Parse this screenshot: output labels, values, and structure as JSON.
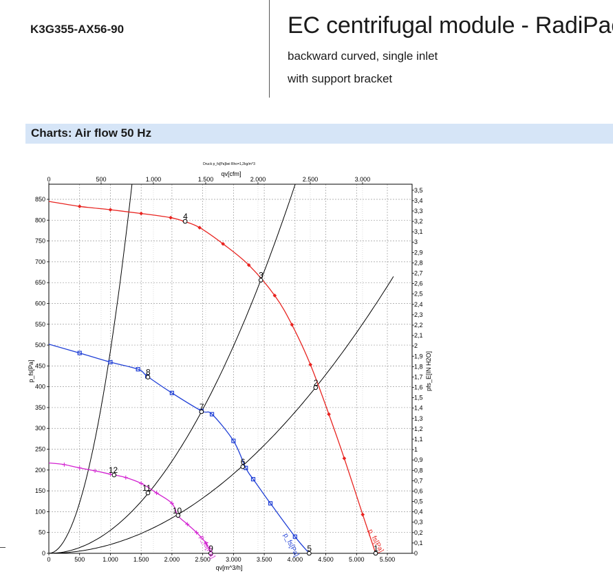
{
  "header": {
    "model": "K3G355-AX56-90",
    "title": "EC centrifugal module - RadiPac",
    "subtitle1": "backward curved, single inlet",
    "subtitle2": "with support bracket"
  },
  "section": {
    "title": "Charts: Air flow 50 Hz"
  },
  "chart_data": {
    "type": "line",
    "top_note": "Druck p_fs[Pa]bei Rho=1,2kg/m^3",
    "xlabel": "qv[m^3/h]",
    "x2label": "qv[cfm]",
    "ylabel": "p_fs[Pa]",
    "y2label": "pfs_E[IN H2O]",
    "xlim": [
      0,
      5800
    ],
    "ylim": [
      0,
      860
    ],
    "x_ticks": [
      0,
      500,
      1000,
      1500,
      2000,
      2500,
      3000,
      3500,
      4000,
      4500,
      5000,
      5500
    ],
    "x_tick_labels": [
      "0",
      "500",
      "1.000",
      "1.500",
      "2.000",
      "2.500",
      "3.000",
      "3.500",
      "4.000",
      "4.500",
      "5.000",
      "5.500"
    ],
    "x2_ticks": [
      0,
      500,
      1000,
      1500,
      2000,
      2500,
      3000
    ],
    "x2_tick_labels": [
      "0",
      "500",
      "1.000",
      "1.500",
      "2.000",
      "2.500",
      "3.000"
    ],
    "y_ticks": [
      0,
      50,
      100,
      150,
      200,
      250,
      300,
      350,
      400,
      450,
      500,
      550,
      600,
      650,
      700,
      750,
      800,
      850
    ],
    "y_tick_labels": [
      "0",
      "50",
      "100",
      "150",
      "200",
      "250",
      "300",
      "350",
      "400",
      "450",
      "500",
      "550",
      "600",
      "650",
      "700",
      "750",
      "800",
      "850"
    ],
    "y2_ticks": [
      0,
      0.1,
      0.2,
      0.3,
      0.4,
      0.5,
      0.6,
      0.7,
      0.8,
      0.9,
      1,
      1.1,
      1.2,
      1.3,
      1.4,
      1.5,
      1.6,
      1.7,
      1.8,
      1.9,
      2,
      2.1,
      2.2,
      2.3,
      2.4,
      2.5,
      2.6,
      2.7,
      2.8,
      2.9,
      3,
      3.1,
      3.2,
      3.3,
      3.4,
      3.5
    ],
    "y2_tick_labels": [
      "0",
      "0,1",
      "0,2",
      "0,3",
      "0,4",
      "0,5",
      "0,6",
      "0,7",
      "0,8",
      "0,9",
      "1",
      "1,1",
      "1,2",
      "1,3",
      "1,4",
      "1,5",
      "1,6",
      "1,7",
      "1,8",
      "1,9",
      "2",
      "2,1",
      "2,2",
      "2,3",
      "2,4",
      "2,5",
      "2,6",
      "2,7",
      "2,8",
      "2,9",
      "3",
      "3,1",
      "3,2",
      "3,3",
      "3,4",
      "3,5"
    ],
    "grid": true,
    "series": [
      {
        "name": "p_fs[Pa]",
        "color": "#e8231f",
        "marker": "diamond",
        "points": [
          [
            0,
            845
          ],
          [
            500,
            833
          ],
          [
            1000,
            825
          ],
          [
            1500,
            816
          ],
          [
            1980,
            806
          ],
          [
            2200,
            797
          ],
          [
            2450,
            782
          ],
          [
            2830,
            743
          ],
          [
            3250,
            692
          ],
          [
            3670,
            619
          ],
          [
            3950,
            549
          ],
          [
            4250,
            453
          ],
          [
            4550,
            334
          ],
          [
            4800,
            228
          ],
          [
            5100,
            93
          ],
          [
            5310,
            0
          ]
        ]
      },
      {
        "name": "p_fs[Pa]",
        "color": "#1f3fd6",
        "marker": "square",
        "points": [
          [
            0,
            502
          ],
          [
            500,
            481
          ],
          [
            1000,
            459
          ],
          [
            1450,
            442
          ],
          [
            1600,
            425
          ],
          [
            2000,
            385
          ],
          [
            2480,
            342
          ],
          [
            2650,
            334
          ],
          [
            3000,
            270
          ],
          [
            3200,
            205
          ],
          [
            3320,
            178
          ],
          [
            3600,
            120
          ],
          [
            4000,
            40
          ],
          [
            4230,
            0
          ]
        ]
      },
      {
        "name": "p_fs[Pa]",
        "color": "#d21fd0",
        "marker": "star",
        "points": [
          [
            0,
            217
          ],
          [
            250,
            213
          ],
          [
            500,
            205
          ],
          [
            750,
            198
          ],
          [
            1000,
            190
          ],
          [
            1250,
            182
          ],
          [
            1500,
            168
          ],
          [
            1750,
            145
          ],
          [
            2000,
            120
          ],
          [
            2100,
            90
          ],
          [
            2250,
            70
          ],
          [
            2400,
            50
          ],
          [
            2550,
            25
          ],
          [
            2630,
            0
          ]
        ]
      }
    ],
    "system_curves": [
      {
        "name": "4",
        "k": 0.000486
      },
      {
        "name": "3",
        "k": 5.53e-05
      },
      {
        "name": "2",
        "k": 2.12e-05
      }
    ],
    "operating_points": [
      {
        "label": "4",
        "x": 2215,
        "y": 797
      },
      {
        "label": "3",
        "x": 3445,
        "y": 656
      },
      {
        "label": "2",
        "x": 4335,
        "y": 398
      },
      {
        "label": "1",
        "x": 5310,
        "y": 0
      },
      {
        "label": "8",
        "x": 1610,
        "y": 423
      },
      {
        "label": "7",
        "x": 2480,
        "y": 340
      },
      {
        "label": "6",
        "x": 3150,
        "y": 208
      },
      {
        "label": "5",
        "x": 4230,
        "y": 0
      },
      {
        "label": "12",
        "x": 1060,
        "y": 188
      },
      {
        "label": "11",
        "x": 1610,
        "y": 145
      },
      {
        "label": "10",
        "x": 2100,
        "y": 91
      },
      {
        "label": "9",
        "x": 2630,
        "y": 0
      }
    ]
  }
}
